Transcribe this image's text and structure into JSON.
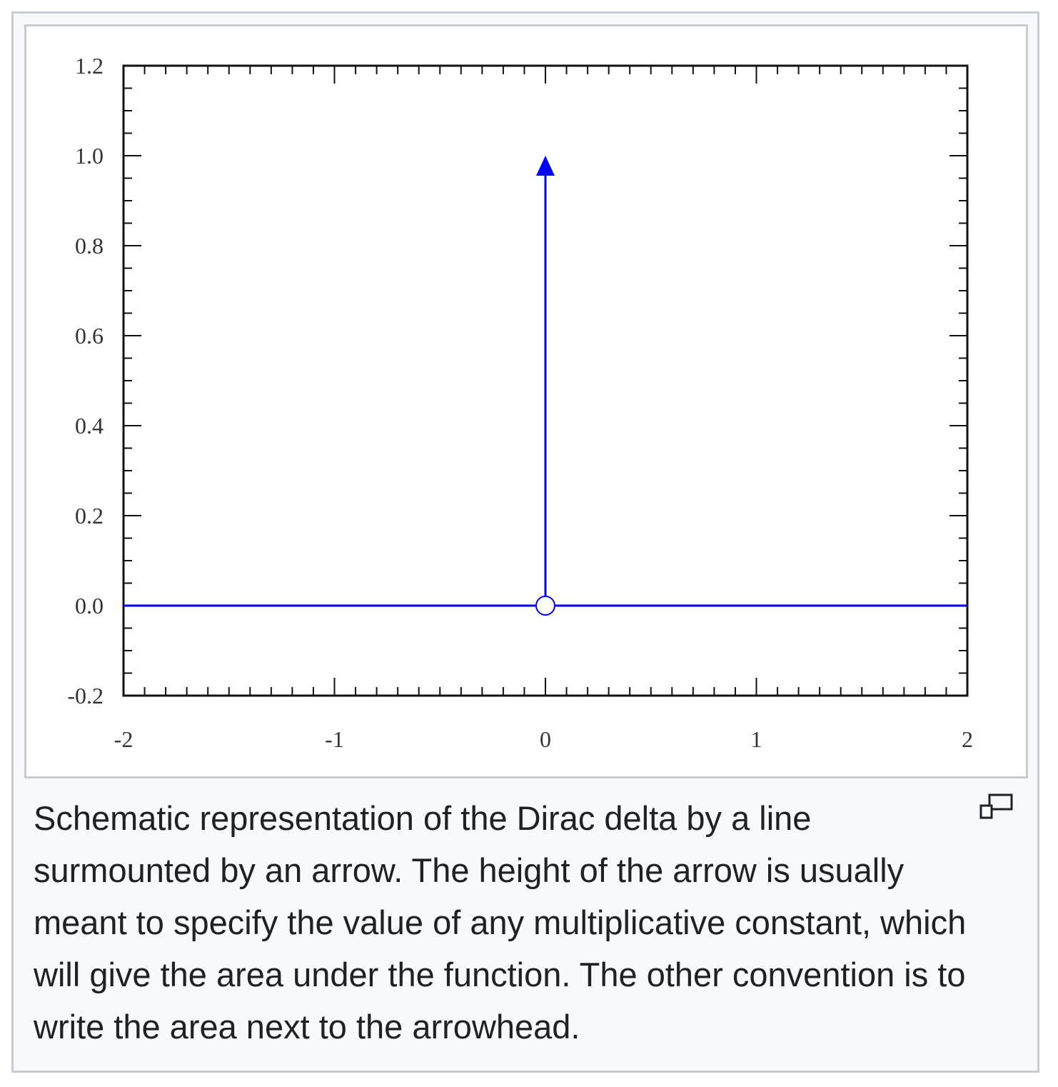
{
  "caption": {
    "text": "Schematic representation of the Dirac delta by a line surmounted by an arrow. The height of the arrow is usually meant to specify the value of any multiplicative constant, which will give the area under the function. The other convention is to write the area next to the arrowhead.",
    "magnify_icon": "magnify-clip-icon"
  },
  "chart_data": {
    "type": "line",
    "title": "",
    "xlabel": "",
    "ylabel": "",
    "xlim": [
      -2,
      2
    ],
    "ylim": [
      -0.2,
      1.2
    ],
    "x_ticks": [
      "-2",
      "-1",
      "0",
      "1",
      "2"
    ],
    "y_ticks": [
      "-0.2",
      "0.0",
      "0.2",
      "0.4",
      "0.6",
      "0.8",
      "1.0",
      "1.2"
    ],
    "series": [
      {
        "x": [
          -2,
          0,
          2
        ],
        "y": [
          0,
          0,
          0
        ]
      }
    ],
    "impulse": {
      "x": 0,
      "y": 1.0,
      "marker_at_base": "open-circle"
    },
    "line_color": "#0000ff",
    "grid": false
  }
}
